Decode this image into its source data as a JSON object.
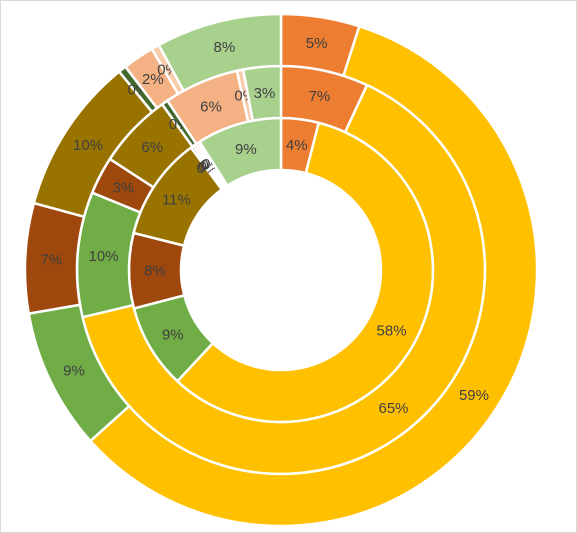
{
  "chart_data": {
    "type": "doughnut",
    "title": "",
    "legend": "none",
    "slice_colors": [
      "#ED7D31",
      "#FFC000",
      "#70AD47",
      "#9E480E",
      "#997300",
      "#43682B",
      "#F4B183",
      "#F8CBAD",
      "#A9D18E"
    ],
    "rings": [
      {
        "ring": "inner",
        "values": [
          4,
          58,
          9,
          8,
          11,
          0.3,
          0.3,
          0.3,
          0.2,
          9
        ],
        "labels": [
          "4%",
          "58%",
          "9%",
          "8%",
          "11%",
          "0%",
          "0%",
          "0%",
          "0%",
          "9%"
        ],
        "colors": [
          "#ED7D31",
          "#FFC000",
          "#70AD47",
          "#9E480E",
          "#997300",
          "#43682B",
          "#ED7D31",
          "#F4B183",
          "#F8CBAD",
          "#A9D18E"
        ]
      },
      {
        "ring": "middle",
        "values": [
          7,
          65,
          10,
          3,
          6,
          0.5,
          6,
          0.5,
          3
        ],
        "labels": [
          "7%",
          "65%",
          "10%",
          "3%",
          "6%",
          "0%",
          "6%",
          "0%",
          "3%"
        ],
        "colors": [
          "#ED7D31",
          "#FFC000",
          "#70AD47",
          "#9E480E",
          "#997300",
          "#43682B",
          "#F4B183",
          "#F8CBAD",
          "#A9D18E"
        ]
      },
      {
        "ring": "outer",
        "values": [
          5,
          59,
          9,
          7,
          10,
          0.5,
          2,
          0.5,
          8
        ],
        "labels": [
          "5%",
          "59%",
          "9%",
          "7%",
          "10%",
          "0%",
          "2%",
          "0%",
          "8%"
        ],
        "colors": [
          "#ED7D31",
          "#FFC000",
          "#70AD47",
          "#9E480E",
          "#997300",
          "#43682B",
          "#F4B183",
          "#F8CBAD",
          "#A9D18E"
        ]
      }
    ]
  }
}
